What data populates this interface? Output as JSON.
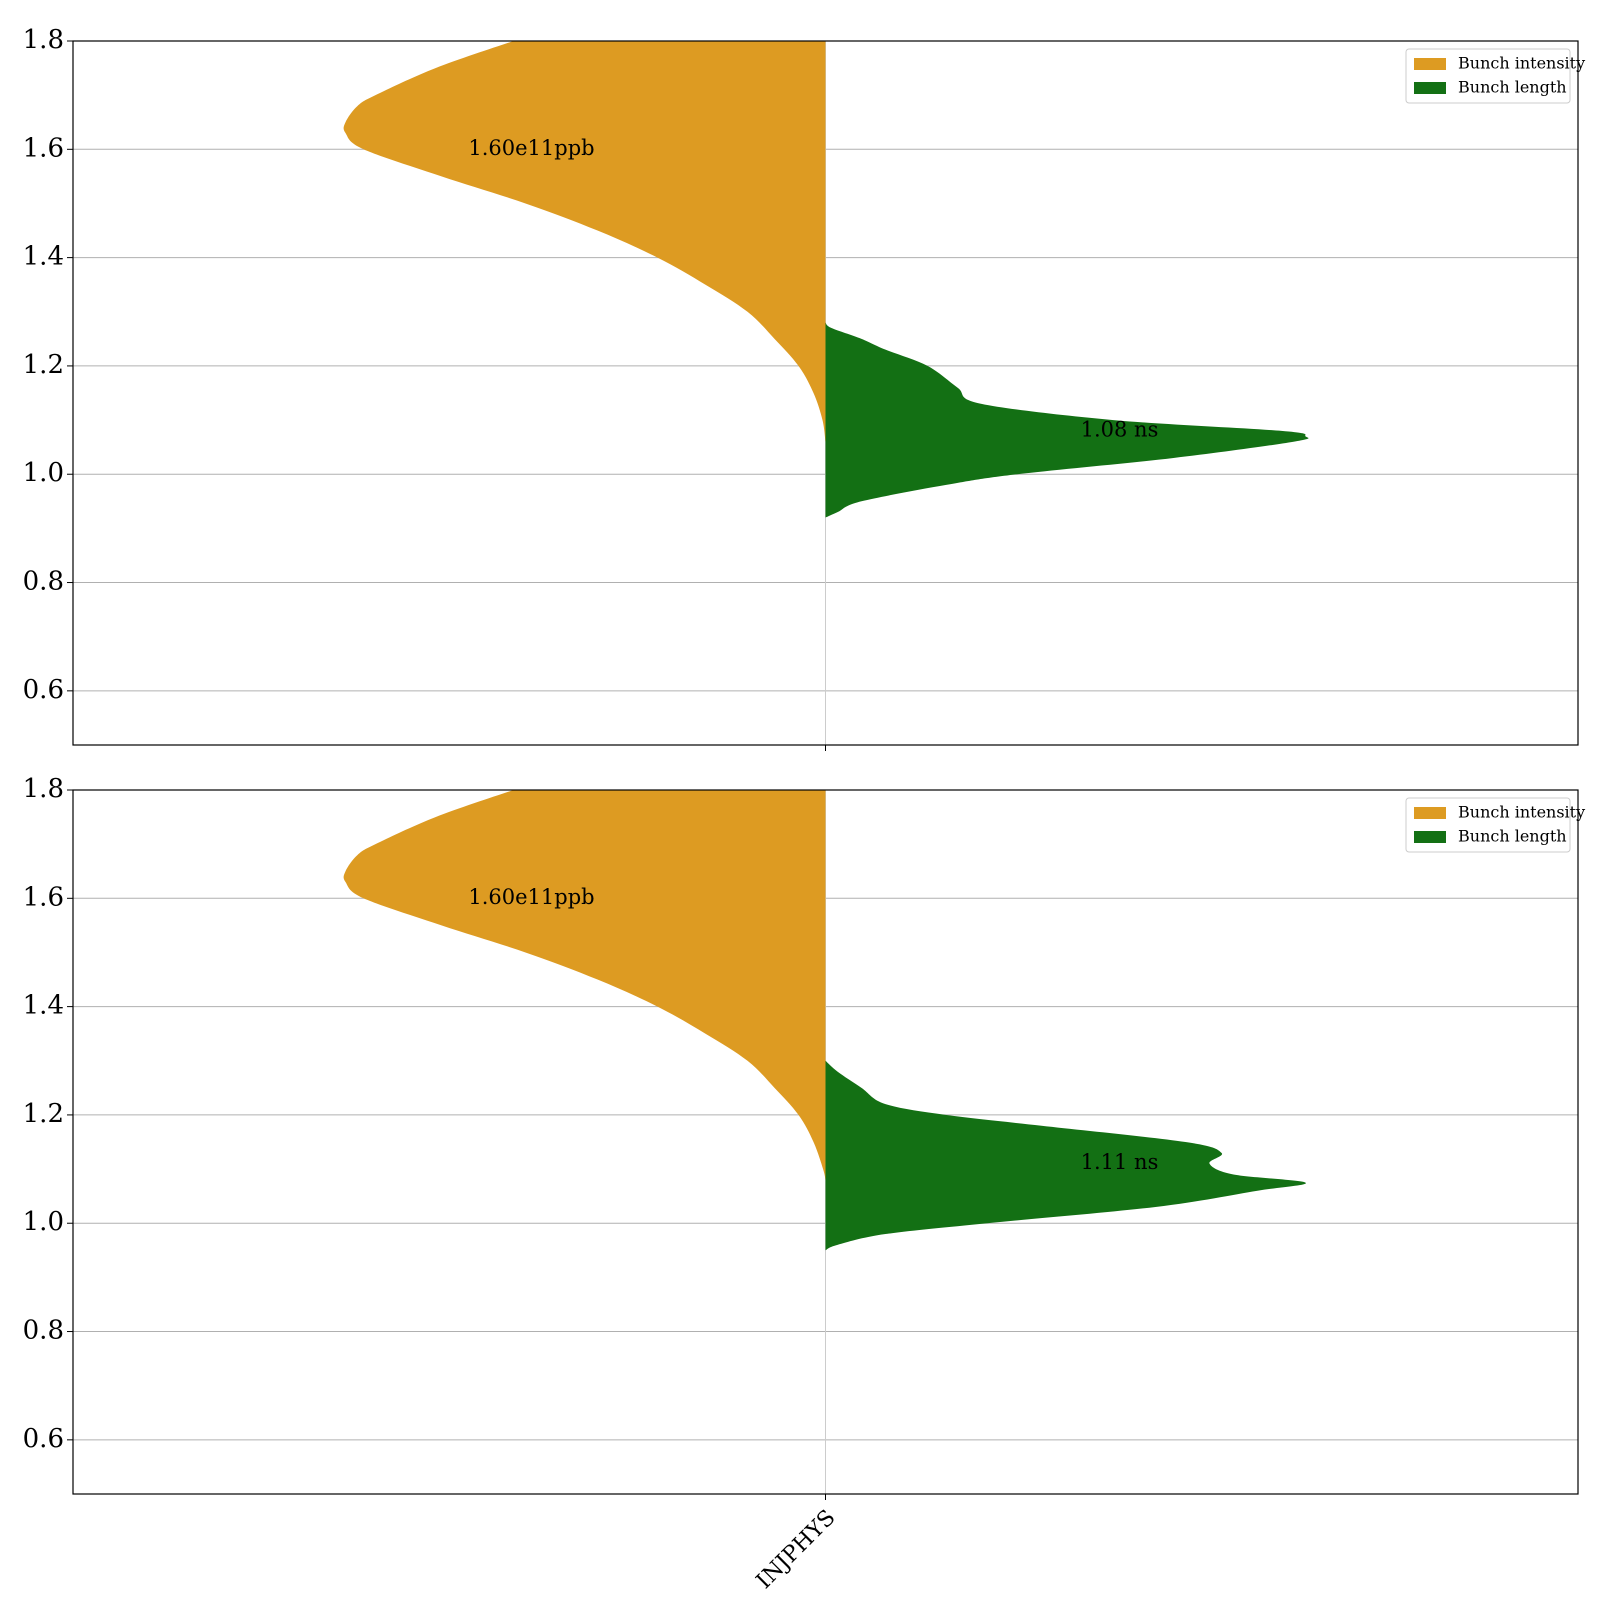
{
  "chart_data": [
    {
      "type": "violin",
      "title": "",
      "xlabel": "",
      "ylabel": "",
      "ylim": [
        0.5,
        1.8
      ],
      "yticks": [
        0.6,
        0.8,
        1.0,
        1.2,
        1.4,
        1.6,
        1.8
      ],
      "ytick_labels": [
        "0.6",
        "0.8",
        "1.0",
        "1.2",
        "1.4",
        "1.6",
        "1.8"
      ],
      "categories": [
        "INJPHYS"
      ],
      "grid": true,
      "legend_position": "top-right",
      "series": [
        {
          "name": "Bunch intensity",
          "side": "left",
          "color": "#dd9b22",
          "annotation": "1.60e11ppb",
          "annotation_y": 1.6,
          "profile": [
            [
              1.06,
              0.0
            ],
            [
              1.1,
              0.005
            ],
            [
              1.15,
              0.02
            ],
            [
              1.2,
              0.045
            ],
            [
              1.25,
              0.085
            ],
            [
              1.3,
              0.13
            ],
            [
              1.35,
              0.2
            ],
            [
              1.4,
              0.28
            ],
            [
              1.45,
              0.38
            ],
            [
              1.5,
              0.5
            ],
            [
              1.55,
              0.64
            ],
            [
              1.6,
              0.77
            ],
            [
              1.63,
              0.8
            ],
            [
              1.65,
              0.8
            ],
            [
              1.68,
              0.78
            ],
            [
              1.7,
              0.75
            ],
            [
              1.75,
              0.65
            ],
            [
              1.8,
              0.52
            ]
          ]
        },
        {
          "name": "Bunch length",
          "side": "right",
          "color": "#137014",
          "annotation": "1.08 ns",
          "annotation_y": 1.08,
          "profile": [
            [
              0.92,
              0.0
            ],
            [
              0.93,
              0.02
            ],
            [
              0.95,
              0.06
            ],
            [
              0.98,
              0.2
            ],
            [
              1.0,
              0.32
            ],
            [
              1.03,
              0.58
            ],
            [
              1.06,
              0.78
            ],
            [
              1.07,
              0.8
            ],
            [
              1.08,
              0.76
            ],
            [
              1.1,
              0.48
            ],
            [
              1.13,
              0.26
            ],
            [
              1.16,
              0.22
            ],
            [
              1.2,
              0.17
            ],
            [
              1.23,
              0.1
            ],
            [
              1.25,
              0.06
            ],
            [
              1.27,
              0.01
            ],
            [
              1.28,
              0.0
            ]
          ]
        }
      ]
    },
    {
      "type": "violin",
      "title": "",
      "xlabel": "",
      "ylabel": "",
      "ylim": [
        0.5,
        1.8
      ],
      "yticks": [
        0.6,
        0.8,
        1.0,
        1.2,
        1.4,
        1.6,
        1.8
      ],
      "ytick_labels": [
        "0.6",
        "0.8",
        "1.0",
        "1.2",
        "1.4",
        "1.6",
        "1.8"
      ],
      "categories": [
        "INJPHYS"
      ],
      "grid": true,
      "legend_position": "top-right",
      "series": [
        {
          "name": "Bunch intensity",
          "side": "left",
          "color": "#dd9b22",
          "annotation": "1.60e11ppb",
          "annotation_y": 1.6,
          "profile": [
            [
              1.08,
              0.0
            ],
            [
              1.1,
              0.004
            ],
            [
              1.15,
              0.02
            ],
            [
              1.2,
              0.045
            ],
            [
              1.25,
              0.085
            ],
            [
              1.3,
              0.13
            ],
            [
              1.35,
              0.2
            ],
            [
              1.4,
              0.28
            ],
            [
              1.45,
              0.38
            ],
            [
              1.5,
              0.5
            ],
            [
              1.55,
              0.64
            ],
            [
              1.6,
              0.77
            ],
            [
              1.63,
              0.8
            ],
            [
              1.65,
              0.8
            ],
            [
              1.68,
              0.78
            ],
            [
              1.7,
              0.75
            ],
            [
              1.75,
              0.65
            ],
            [
              1.8,
              0.52
            ]
          ]
        },
        {
          "name": "Bunch length",
          "side": "right",
          "color": "#137014",
          "annotation": "1.11 ns",
          "annotation_y": 1.11,
          "profile": [
            [
              0.95,
              0.0
            ],
            [
              0.96,
              0.02
            ],
            [
              0.98,
              0.1
            ],
            [
              1.0,
              0.27
            ],
            [
              1.03,
              0.55
            ],
            [
              1.06,
              0.72
            ],
            [
              1.075,
              0.8
            ],
            [
              1.09,
              0.68
            ],
            [
              1.11,
              0.64
            ],
            [
              1.13,
              0.66
            ],
            [
              1.15,
              0.6
            ],
            [
              1.18,
              0.36
            ],
            [
              1.2,
              0.2
            ],
            [
              1.22,
              0.1
            ],
            [
              1.25,
              0.06
            ],
            [
              1.28,
              0.02
            ],
            [
              1.3,
              0.0
            ]
          ]
        }
      ]
    }
  ]
}
